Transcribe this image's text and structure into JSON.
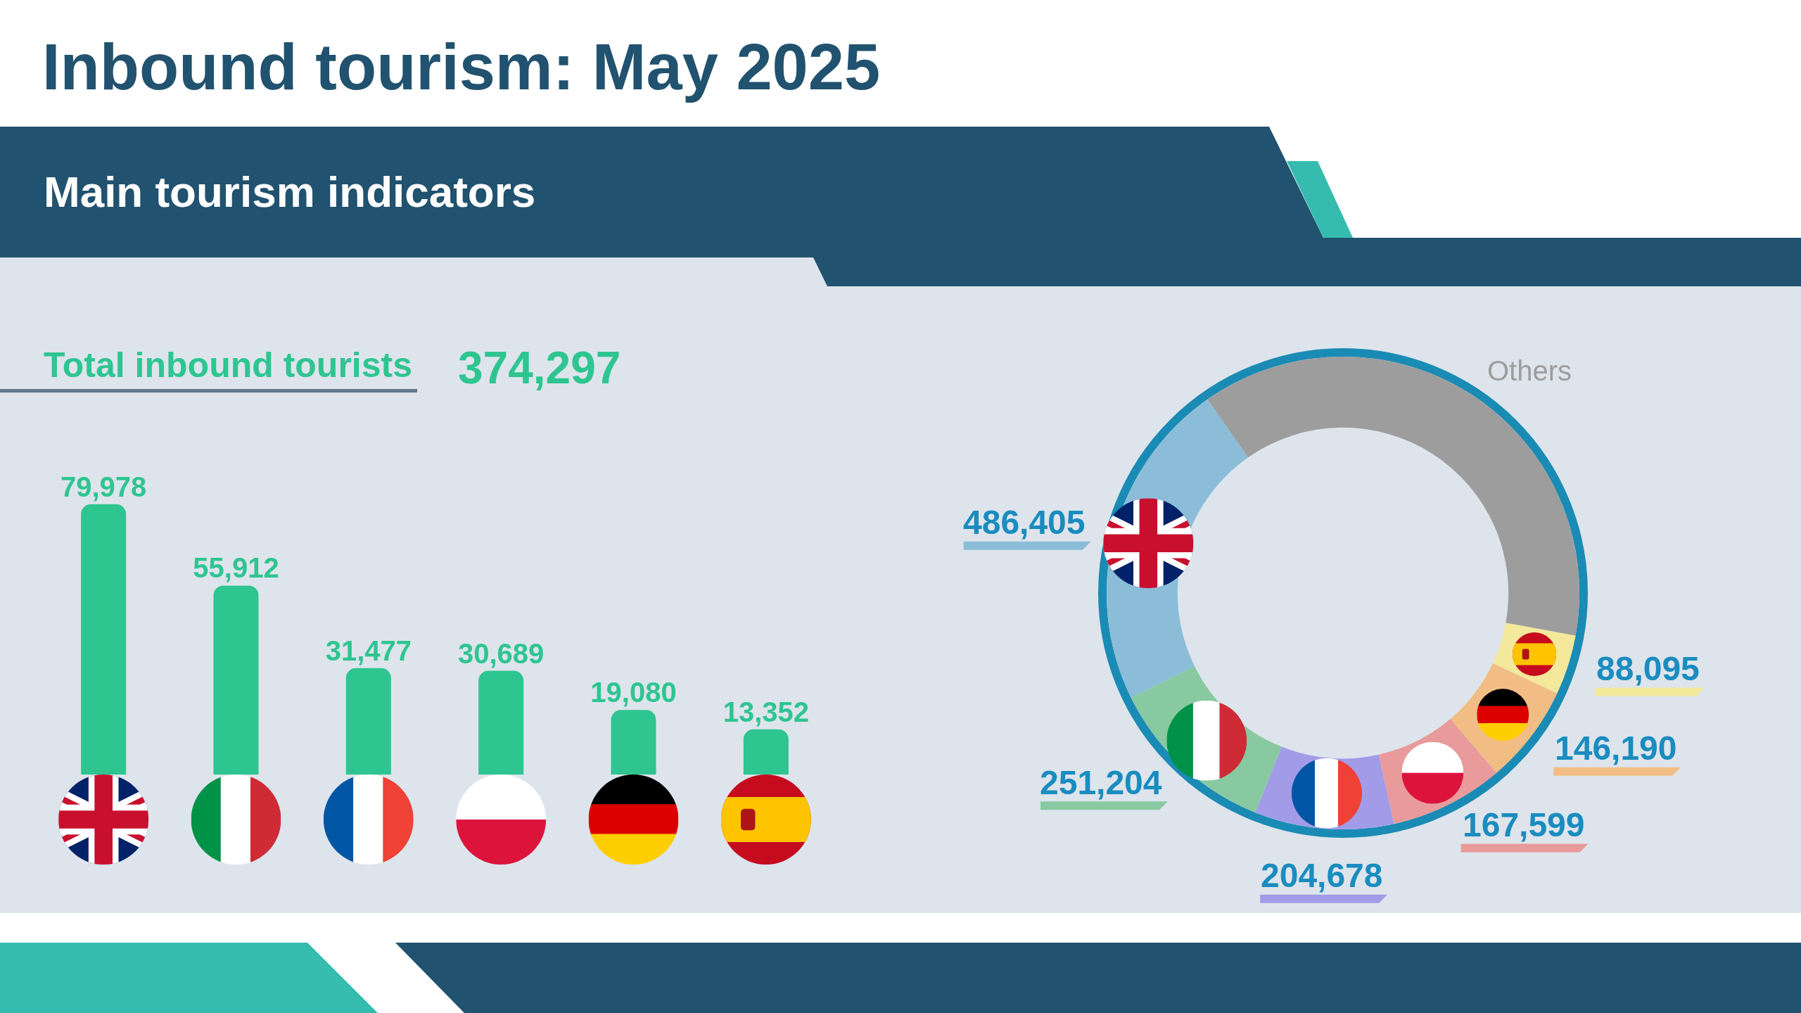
{
  "chart_data": [
    {
      "type": "bar",
      "title": "Inbound tourism: May 2025",
      "subtitle": "Main tourism indicators",
      "annotations": [
        "Total inbound tourists",
        "374,297"
      ],
      "categories": [
        null,
        null,
        null,
        null,
        null,
        null
      ],
      "values": [
        79978,
        55912,
        31477,
        30689,
        19080,
        13352
      ],
      "value_labels": [
        "79,978",
        "55,912",
        "31,477",
        "30,689",
        "19,080",
        "13,352"
      ],
      "color": "#2ec590",
      "tick_labels": false
    },
    {
      "type": "donut",
      "categories": [
        null,
        null,
        null,
        null,
        null,
        null,
        "Others"
      ],
      "values": [
        486405,
        251204,
        204678,
        167599,
        146190,
        88095,
        810000
      ],
      "colors": [
        "#8bbdd9",
        "#88c9a1",
        "#a19be8",
        "#e99a9a",
        "#f2bd84",
        "#f4e89a",
        "#9d9d9d"
      ],
      "value_labels": [
        "486,405",
        "251,204",
        "204,678",
        "167,599",
        "146,190",
        "88,095",
        null
      ]
    }
  ]
}
